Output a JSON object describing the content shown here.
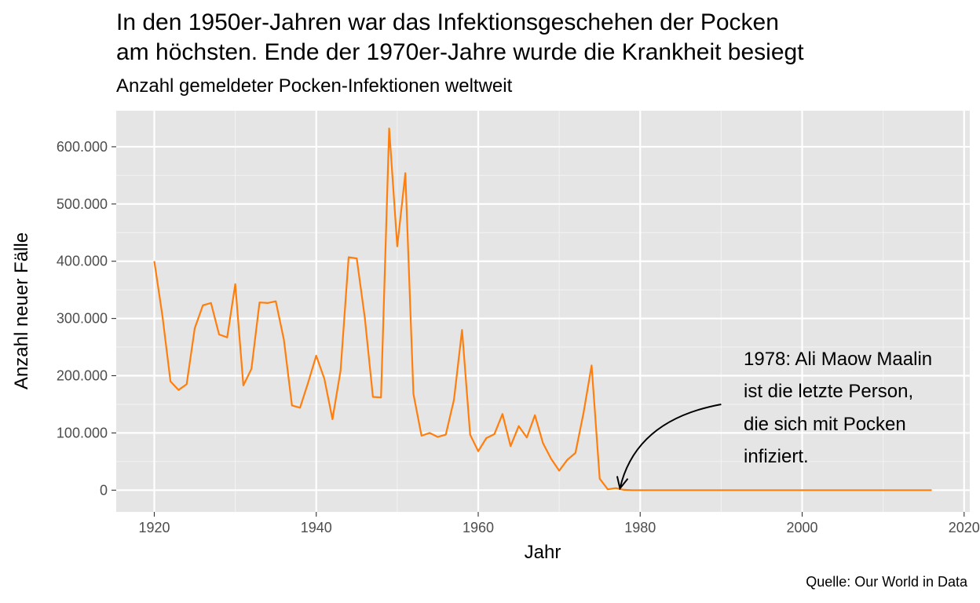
{
  "chart_data": {
    "type": "line",
    "title_lines": [
      "In den 1950er-Jahren war das Infektionsgeschehen der Pocken",
      "am höchsten. Ende der 1970er-Jahre wurde die Krankheit besiegt"
    ],
    "subtitle": "Anzahl gemeldeter Pocken-Infektionen weltweit",
    "xlabel": "Jahr",
    "ylabel": "Anzahl neuer Fälle",
    "caption": "Quelle: Our World in Data",
    "xlim": [
      1915.3,
      2020.7
    ],
    "ylim": [
      -38000,
      663000
    ],
    "x_ticks": [
      1920,
      1940,
      1960,
      1980,
      2000,
      2020
    ],
    "x_tick_labels": [
      "1920",
      "1940",
      "1960",
      "1980",
      "2000",
      "2020"
    ],
    "y_ticks": [
      0,
      100000,
      200000,
      300000,
      400000,
      500000,
      600000
    ],
    "y_tick_labels": [
      "0",
      "100.000",
      "200.000",
      "300.000",
      "400.000",
      "500.000",
      "600.000"
    ],
    "grid": true,
    "line_color": "#ff7f0e",
    "panel_color": "#e5e5e5",
    "series": [
      {
        "x": [
          1920,
          1921,
          1922,
          1923,
          1924,
          1925,
          1926,
          1927,
          1928,
          1929,
          1930,
          1931,
          1932,
          1933,
          1934,
          1935,
          1936,
          1937,
          1938,
          1939,
          1940,
          1941,
          1942,
          1943,
          1944,
          1945,
          1946,
          1947,
          1948,
          1949,
          1950,
          1951,
          1952,
          1953,
          1954,
          1955,
          1956,
          1957,
          1958,
          1959,
          1960,
          1961,
          1962,
          1963,
          1964,
          1965,
          1966,
          1967,
          1968,
          1969,
          1970,
          1971,
          1972,
          1973,
          1974,
          1975,
          1976,
          1977,
          1978,
          1979,
          2016
        ],
        "y": [
          400000,
          305000,
          190000,
          175000,
          185000,
          283000,
          323000,
          327000,
          272000,
          267000,
          360000,
          183000,
          212000,
          328000,
          327000,
          330000,
          263000,
          148000,
          144000,
          188000,
          235000,
          195000,
          124000,
          209000,
          407000,
          405000,
          301000,
          163000,
          162000,
          632000,
          426000,
          554000,
          168000,
          95000,
          100000,
          93000,
          97000,
          158000,
          280000,
          97000,
          68000,
          91000,
          98000,
          133000,
          77000,
          112000,
          92000,
          131000,
          82000,
          55000,
          34000,
          53000,
          65000,
          135000,
          218000,
          20000,
          1500,
          3500,
          500,
          0,
          0
        ]
      }
    ],
    "annotation": {
      "lines": [
        "1978: Ali Maow Maalin",
        "ist die letzte Person,",
        "die sich mit Pocken",
        "infiziert."
      ],
      "target": [
        1977.5,
        3000
      ],
      "start": [
        1990,
        150000
      ]
    }
  }
}
